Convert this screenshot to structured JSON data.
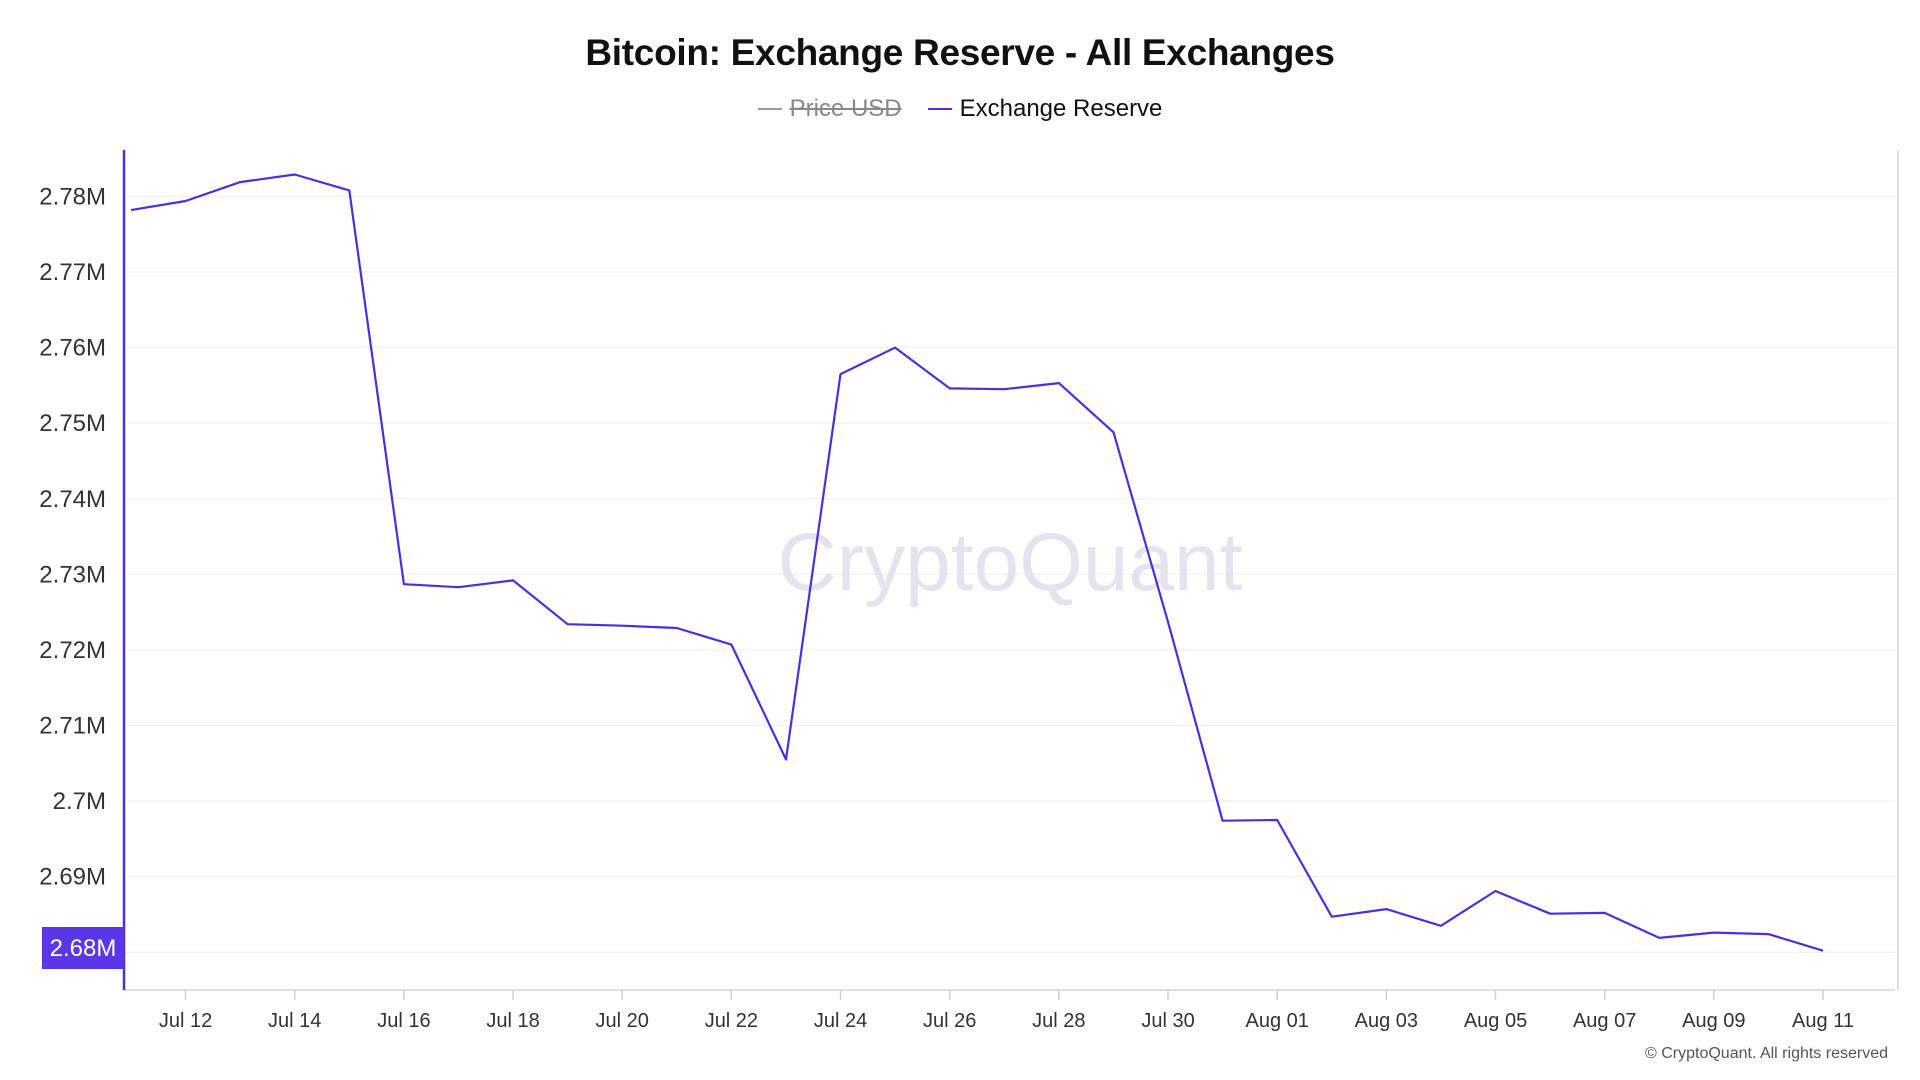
{
  "colors": {
    "series": "#4a2ee3",
    "grid": "#eeeeee",
    "axis": "#cfcfcf",
    "badge": "#5a35e9",
    "legend_hidden": "#9a9a9a",
    "watermark": "#e6e3f0"
  },
  "legend": [
    {
      "name": "Price USD",
      "visible": false
    },
    {
      "name": "Exchange Reserve",
      "visible": true
    }
  ],
  "watermark": "CryptoQuant",
  "copyright": "© CryptoQuant. All rights reserved",
  "chart_data": {
    "type": "line",
    "title": "Bitcoin: Exchange Reserve - All Exchanges",
    "xlabel": "",
    "ylabel": "",
    "grid": true,
    "legend_position": "top-center",
    "x_range": [
      "2024-07-11",
      "2024-08-11"
    ],
    "ylim": [
      2.675,
      2.788
    ],
    "y_ticks": [
      2.68,
      2.69,
      2.7,
      2.71,
      2.72,
      2.73,
      2.74,
      2.75,
      2.76,
      2.77,
      2.78
    ],
    "y_tick_labels": [
      "2.68M",
      "2.69M",
      "2.7M",
      "2.71M",
      "2.72M",
      "2.73M",
      "2.74M",
      "2.75M",
      "2.76M",
      "2.77M",
      "2.78M"
    ],
    "x_ticks": [
      "2024-07-12",
      "2024-07-14",
      "2024-07-16",
      "2024-07-18",
      "2024-07-20",
      "2024-07-22",
      "2024-07-24",
      "2024-07-26",
      "2024-07-28",
      "2024-07-30",
      "2024-08-01",
      "2024-08-03",
      "2024-08-05",
      "2024-08-07",
      "2024-08-09",
      "2024-08-11"
    ],
    "x_tick_labels": [
      "Jul 12",
      "Jul 14",
      "Jul 16",
      "Jul 18",
      "Jul 20",
      "Jul 22",
      "Jul 24",
      "Jul 26",
      "Jul 28",
      "Jul 30",
      "Aug 01",
      "Aug 03",
      "Aug 05",
      "Aug 07",
      "Aug 09",
      "Aug 11"
    ],
    "current_value_label": "2.68M",
    "series": [
      {
        "name": "Exchange Reserve",
        "x": [
          "2024-07-11",
          "2024-07-12",
          "2024-07-13",
          "2024-07-14",
          "2024-07-15",
          "2024-07-16",
          "2024-07-17",
          "2024-07-18",
          "2024-07-19",
          "2024-07-20",
          "2024-07-21",
          "2024-07-22",
          "2024-07-23",
          "2024-07-24",
          "2024-07-25",
          "2024-07-26",
          "2024-07-27",
          "2024-07-28",
          "2024-07-29",
          "2024-07-30",
          "2024-07-31",
          "2024-08-01",
          "2024-08-02",
          "2024-08-03",
          "2024-08-04",
          "2024-08-05",
          "2024-08-06",
          "2024-08-07",
          "2024-08-08",
          "2024-08-09",
          "2024-08-10",
          "2024-08-11"
        ],
        "values": [
          2.7782,
          2.7794,
          2.7819,
          2.7829,
          2.7808,
          2.7287,
          2.7283,
          2.7292,
          2.7234,
          2.7232,
          2.7229,
          2.7207,
          2.7055,
          2.7565,
          2.76,
          2.7546,
          2.7545,
          2.7553,
          2.7488,
          2.7237,
          2.6974,
          2.6975,
          2.6847,
          2.6857,
          2.6835,
          2.6881,
          2.6851,
          2.6852,
          2.6819,
          2.6826,
          2.6824,
          2.6802
        ]
      }
    ]
  }
}
